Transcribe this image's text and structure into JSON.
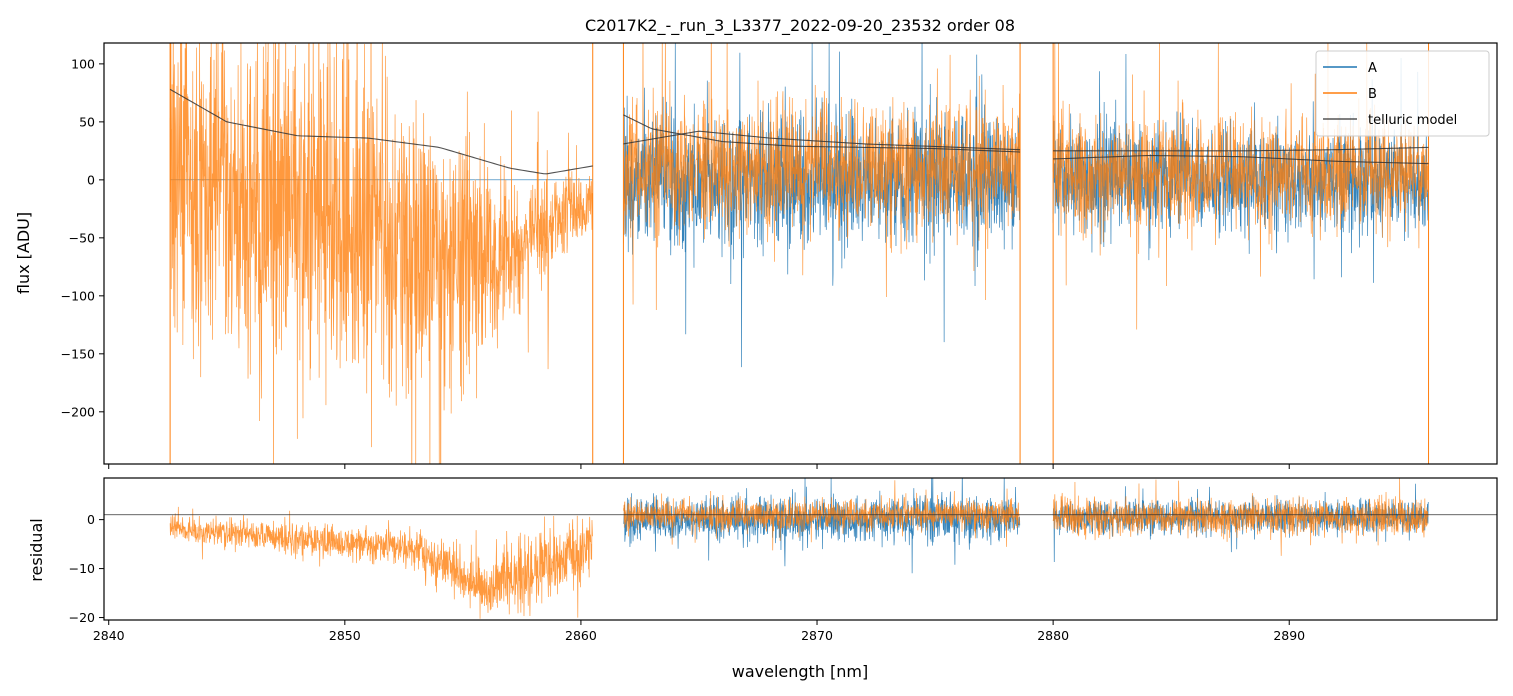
{
  "chart_data": {
    "type": "line",
    "title": "C2017K2_-_run_3_L3377_2022-09-20_23532  order 08",
    "xlabel": "wavelength [nm]",
    "xlim": [
      2839.8,
      2898.8
    ],
    "x_ticks": [
      2840,
      2850,
      2860,
      2870,
      2880,
      2890
    ],
    "colors": {
      "A": "#1f77b4",
      "B": "#ff7f0e",
      "model": "#333333"
    },
    "legend": {
      "position": "top-right",
      "entries": [
        "A",
        "B",
        "telluric model"
      ]
    },
    "flux_panel": {
      "ylabel": "flux [ADU]",
      "ylim": [
        -245,
        118
      ],
      "y_ticks": [
        100,
        50,
        0,
        -50,
        -100,
        -150,
        -200
      ],
      "y_tick_labels": [
        "100",
        "50",
        "0",
        "−50",
        "−100",
        "−150",
        "−200"
      ],
      "segments": [
        {
          "x_range": [
            2842.6,
            2860.5
          ],
          "A_level": 0,
          "B_level_points": [
            [
              2842.6,
              0
            ],
            [
              2850,
              -40
            ],
            [
              2856,
              -70
            ],
            [
              2860.5,
              -20
            ]
          ],
          "B_noise_points": [
            [
              2842.6,
              230
            ],
            [
              2850,
              220
            ],
            [
              2855,
              180
            ],
            [
              2857,
              90
            ],
            [
              2860.5,
              40
            ]
          ],
          "model_points": [
            [
              2842.6,
              78
            ],
            [
              2845,
              50
            ],
            [
              2848,
              38
            ],
            [
              2851,
              36
            ],
            [
              2854,
              28
            ],
            [
              2857,
              10
            ],
            [
              2858.5,
              5
            ],
            [
              2860.5,
              12
            ]
          ]
        },
        {
          "x_range": [
            2861.8,
            2878.6
          ],
          "A_level": 0,
          "A_noise": 40,
          "B_level": 10,
          "B_noise": 38,
          "model_points": [
            [
              2861.8,
              56
            ],
            [
              2863,
              44
            ],
            [
              2866,
              33
            ],
            [
              2869,
              29
            ],
            [
              2872,
              28
            ],
            [
              2875,
              27
            ],
            [
              2878.6,
              24
            ]
          ],
          "model2_points": [
            [
              2861.8,
              31
            ],
            [
              2865,
              42
            ],
            [
              2868,
              36
            ],
            [
              2872,
              31
            ],
            [
              2876,
              28
            ],
            [
              2878.6,
              26
            ]
          ]
        },
        {
          "x_range": [
            2880.0,
            2895.9
          ],
          "A_level": 0,
          "A_noise": 32,
          "B_level": 5,
          "B_noise": 34,
          "model_points": [
            [
              2880,
              18
            ],
            [
              2884,
              21
            ],
            [
              2888,
              20
            ],
            [
              2892,
              16
            ],
            [
              2895.9,
              14
            ]
          ],
          "model2_points": [
            [
              2880,
              25
            ],
            [
              2884,
              25
            ],
            [
              2888,
              25
            ],
            [
              2892,
              26
            ],
            [
              2895.9,
              28
            ]
          ]
        }
      ]
    },
    "residual_panel": {
      "ylabel": "residual",
      "ylim": [
        -20.5,
        8.5
      ],
      "y_ticks": [
        0,
        -10,
        -20
      ],
      "y_tick_labels": [
        "0",
        "−10",
        "−20"
      ],
      "reference_line": 1,
      "segments": [
        {
          "x_range": [
            2842.6,
            2860.5
          ],
          "B_level_points": [
            [
              2842.6,
              -2
            ],
            [
              2848,
              -4
            ],
            [
              2853,
              -6
            ],
            [
              2856,
              -14
            ],
            [
              2860.5,
              -5
            ]
          ],
          "B_noise_points": [
            [
              2842.6,
              4
            ],
            [
              2850,
              5
            ],
            [
              2855,
              7
            ],
            [
              2857,
              12
            ],
            [
              2860.5,
              10
            ]
          ]
        },
        {
          "x_range": [
            2861.8,
            2878.6
          ],
          "A_level": 0,
          "A_noise": 3.2,
          "B_level": 1,
          "B_noise": 2.2
        },
        {
          "x_range": [
            2880.0,
            2895.9
          ],
          "A_level": 0.5,
          "A_noise": 2.4,
          "B_level": 0.5,
          "B_noise": 2.6
        }
      ]
    }
  }
}
